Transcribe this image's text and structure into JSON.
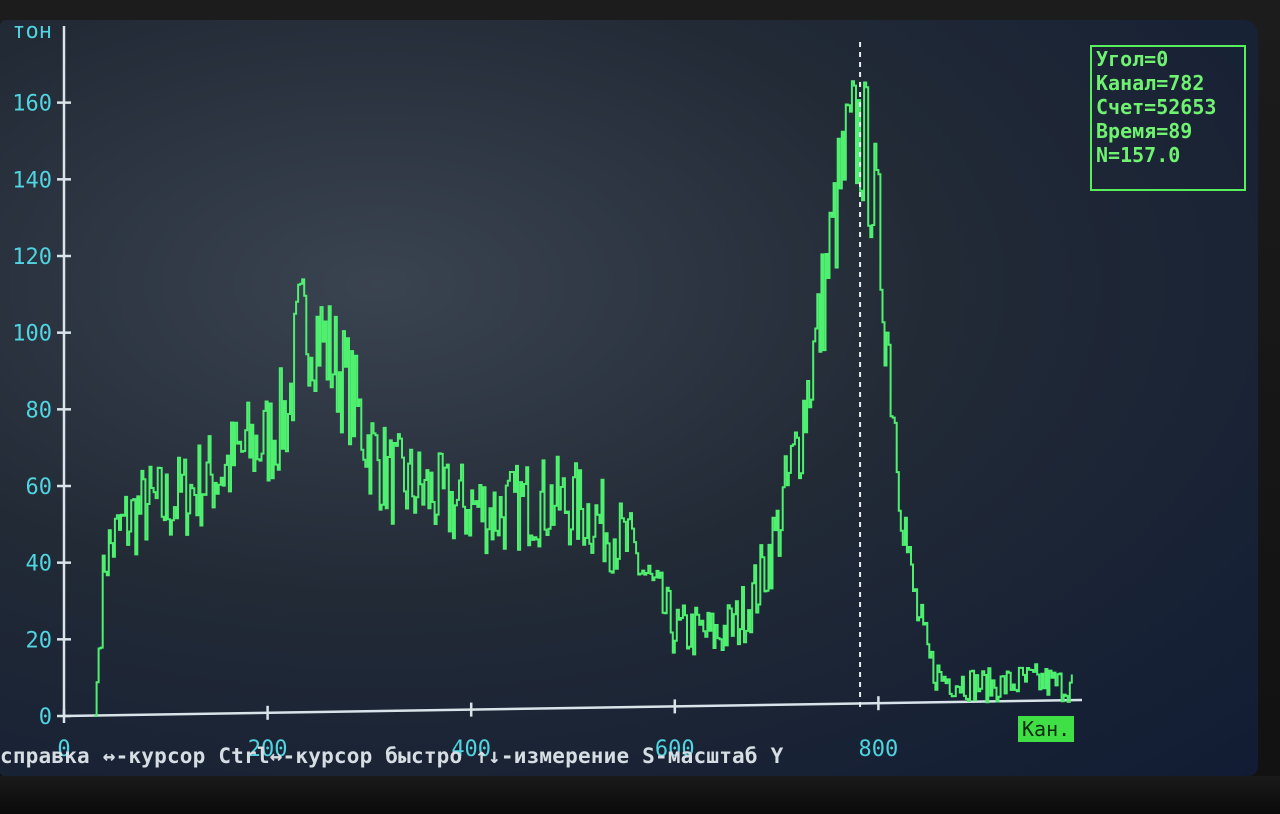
{
  "chart_data": {
    "type": "line",
    "x_ticks": [
      "0",
      "200",
      "400",
      "600",
      "800"
    ],
    "y_ticks": [
      "0",
      "20",
      "40",
      "60",
      "80",
      "100",
      "120",
      "140",
      "160"
    ],
    "xlim": [
      0,
      1000
    ],
    "ylim": [
      0,
      180
    ],
    "y_unit_partial": "тон",
    "x_unit": "Кан.",
    "cursor_channel": 782,
    "line_color": "#4ff070",
    "series": [
      {
        "x": [
          30,
          35,
          40,
          60,
          80,
          100,
          120,
          140,
          160,
          180,
          200,
          220,
          230,
          240,
          250,
          260,
          270,
          280,
          300,
          320,
          340,
          360,
          380,
          400,
          420,
          440,
          460,
          480,
          500,
          520,
          540,
          560,
          580,
          600,
          620,
          640,
          660,
          680,
          700,
          720,
          740,
          760,
          770,
          780,
          790,
          800,
          810,
          820,
          830,
          840,
          850,
          860,
          880,
          900,
          920,
          940,
          960,
          980,
          990
        ],
        "values": [
          0,
          22,
          42,
          50,
          55,
          55,
          58,
          62,
          65,
          70,
          72,
          80,
          100,
          102,
          100,
          95,
          90,
          85,
          70,
          62,
          60,
          58,
          55,
          55,
          53,
          54,
          56,
          56,
          55,
          52,
          48,
          42,
          32,
          22,
          22,
          21,
          24,
          33,
          48,
          70,
          100,
          135,
          148,
          152,
          145,
          125,
          95,
          65,
          38,
          24,
          14,
          10,
          9,
          8,
          8,
          9,
          9,
          8,
          8
        ]
      }
    ]
  },
  "info": {
    "angle": "Угол=0",
    "channel": "Канал=782",
    "count": "Счет=52653",
    "time": "Время=89",
    "n": "N=157.0"
  },
  "help": "справка ↔-курсор Ctrl↔-курсор быстро ↑↓-измерение S-масштаб Y"
}
